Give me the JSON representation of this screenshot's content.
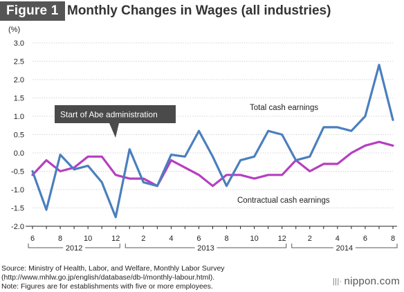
{
  "header": {
    "figure_label": "Figure 1",
    "title": "Monthly Changes in Wages (all industries)"
  },
  "chart_data": {
    "type": "line",
    "ylabel": "(%)",
    "ylim": [
      -2.0,
      3.0
    ],
    "yticks": [
      {
        "value": 3.0,
        "label": "3.0"
      },
      {
        "value": 2.5,
        "label": "2.5"
      },
      {
        "value": 2.0,
        "label": "2.0"
      },
      {
        "value": 1.5,
        "label": "1.5"
      },
      {
        "value": 1.0,
        "label": "1.0"
      },
      {
        "value": 0.5,
        "label": "0.5"
      },
      {
        "value": 0.0,
        "label": "0.0"
      },
      {
        "value": -0.5,
        "label": "-0.5"
      },
      {
        "value": -1.0,
        "label": "-1.0"
      },
      {
        "value": -1.5,
        "label": "-1.5"
      },
      {
        "value": -2.0,
        "label": "-2.0"
      }
    ],
    "grid": true,
    "x": [
      "2012-06",
      "2012-07",
      "2012-08",
      "2012-09",
      "2012-10",
      "2012-11",
      "2012-12",
      "2013-01",
      "2013-02",
      "2013-03",
      "2013-04",
      "2013-05",
      "2013-06",
      "2013-07",
      "2013-08",
      "2013-09",
      "2013-10",
      "2013-11",
      "2013-12",
      "2014-01",
      "2014-02",
      "2014-03",
      "2014-04",
      "2014-05",
      "2014-06",
      "2014-07",
      "2014-08"
    ],
    "xtick_labels": [
      {
        "x": "2012-06",
        "label": "6"
      },
      {
        "x": "2012-08",
        "label": "8"
      },
      {
        "x": "2012-10",
        "label": "10"
      },
      {
        "x": "2012-12",
        "label": "12"
      },
      {
        "x": "2013-02",
        "label": "2"
      },
      {
        "x": "2013-04",
        "label": "4"
      },
      {
        "x": "2013-06",
        "label": "6"
      },
      {
        "x": "2013-08",
        "label": "8"
      },
      {
        "x": "2013-10",
        "label": "10"
      },
      {
        "x": "2013-12",
        "label": "12"
      },
      {
        "x": "2014-02",
        "label": "2"
      },
      {
        "x": "2014-04",
        "label": "4"
      },
      {
        "x": "2014-06",
        "label": "6"
      },
      {
        "x": "2014-08",
        "label": "8"
      }
    ],
    "year_groups": [
      {
        "label": "2012",
        "from": "2012-06",
        "to": "2012-12"
      },
      {
        "label": "2013",
        "from": "2013-01",
        "to": "2013-12"
      },
      {
        "label": "2014",
        "from": "2014-01",
        "to": "2014-08"
      }
    ],
    "series": [
      {
        "name": "Total cash earnings",
        "color": "#4a7fbe",
        "values": [
          -0.5,
          -1.55,
          -0.05,
          -0.45,
          -0.35,
          -0.8,
          -1.75,
          0.1,
          -0.8,
          -0.9,
          -0.05,
          -0.1,
          0.6,
          -0.1,
          -0.9,
          -0.2,
          -0.1,
          0.6,
          0.5,
          -0.2,
          -0.1,
          0.7,
          0.7,
          0.6,
          1.0,
          2.4,
          0.9
        ]
      },
      {
        "name": "Contractual cash earnings",
        "color": "#b53fc0",
        "values": [
          -0.6,
          -0.2,
          -0.5,
          -0.4,
          -0.1,
          -0.1,
          -0.6,
          -0.7,
          -0.7,
          -0.9,
          -0.2,
          -0.4,
          -0.6,
          -0.9,
          -0.6,
          -0.6,
          -0.7,
          -0.6,
          -0.6,
          -0.2,
          -0.5,
          -0.3,
          -0.3,
          0.0,
          0.2,
          0.3,
          0.2
        ]
      }
    ],
    "annotations": [
      {
        "text": "Start of Abe administration",
        "x": "2012-12",
        "style": "callout"
      }
    ]
  },
  "footer": {
    "source_line1": "Source: Ministry of Health, Labor, and Welfare, Monthly Labor Survey",
    "source_line2": "(http://www.mhlw.go.jp/english/database/db-l/monthly-labour.html).",
    "note": "Note: Figures are for establishments with five or more employees.",
    "brand": "nippon.com"
  }
}
